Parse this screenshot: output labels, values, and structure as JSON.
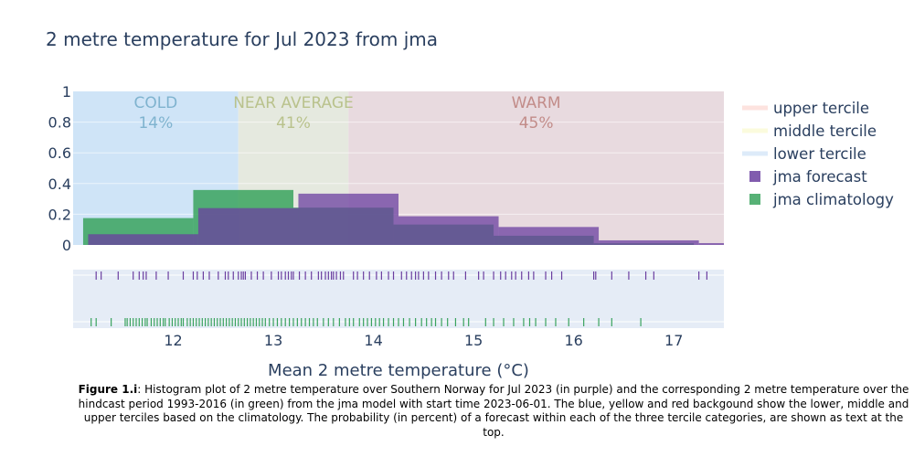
{
  "chart_data": {
    "type": "bar",
    "title": "2 metre temperature for Jul 2023 from jma",
    "xlabel": "Mean 2 metre temperature (°C)",
    "ylabel": "",
    "xlim": [
      11.0,
      17.5
    ],
    "ylim": [
      0,
      1
    ],
    "x_ticks": [
      12,
      13,
      14,
      15,
      16,
      17
    ],
    "y_ticks": [
      {
        "v": 0,
        "label": "0"
      },
      {
        "v": 0.2,
        "label": "0.2"
      },
      {
        "v": 0.4,
        "label": "0.4"
      },
      {
        "v": 0.6,
        "label": "0.6"
      },
      {
        "v": 0.8,
        "label": "0.8"
      },
      {
        "v": 1,
        "label": "1"
      }
    ],
    "grid": true,
    "legend_position": "right",
    "terciles": [
      {
        "name": "lower tercile",
        "label": "COLD",
        "probability": "14%",
        "from": 11.0,
        "to": 12.65,
        "fill": "#cfe4f7",
        "text_color": "#7fb3cf",
        "legend_color": "#ddebf9"
      },
      {
        "name": "middle tercile",
        "label": "NEAR AVERAGE",
        "probability": "41%",
        "from": 12.65,
        "to": 13.75,
        "fill": "#e5e9df",
        "text_color": "#b9c28c",
        "legend_color": "#fbfbdd"
      },
      {
        "name": "upper tercile",
        "label": "WARM",
        "probability": "45%",
        "from": 13.75,
        "to": 17.5,
        "fill": "#e8dadf",
        "text_color": "#c28c89",
        "legend_color": "#fde3df"
      }
    ],
    "series": [
      {
        "name": "jma climatology",
        "color": "#3aa35e",
        "opacity": 0.85,
        "bins": [
          {
            "x0": 11.1,
            "x1": 12.2,
            "y": 0.175
          },
          {
            "x0": 12.2,
            "x1": 13.2,
            "y": 0.358
          },
          {
            "x0": 13.2,
            "x1": 14.2,
            "y": 0.243
          },
          {
            "x0": 14.2,
            "x1": 15.2,
            "y": 0.133
          },
          {
            "x0": 15.2,
            "x1": 16.2,
            "y": 0.06
          },
          {
            "x0": 16.2,
            "x1": 17.2,
            "y": 0.011
          }
        ],
        "rug": [
          11.18,
          11.23,
          11.38,
          11.52,
          11.54,
          11.57,
          11.6,
          11.63,
          11.66,
          11.69,
          11.72,
          11.74,
          11.78,
          11.81,
          11.84,
          11.87,
          11.9,
          11.92,
          11.96,
          11.99,
          12.02,
          12.05,
          12.08,
          12.1,
          12.14,
          12.17,
          12.2,
          12.23,
          12.26,
          12.29,
          12.32,
          12.35,
          12.38,
          12.41,
          12.44,
          12.47,
          12.5,
          12.53,
          12.56,
          12.59,
          12.62,
          12.65,
          12.68,
          12.71,
          12.74,
          12.77,
          12.8,
          12.83,
          12.86,
          12.89,
          12.92,
          12.96,
          13.0,
          13.04,
          13.08,
          13.12,
          13.16,
          13.2,
          13.24,
          13.28,
          13.32,
          13.36,
          13.4,
          13.44,
          13.5,
          13.55,
          13.6,
          13.66,
          13.72,
          13.76,
          13.8,
          13.86,
          13.9,
          13.94,
          13.98,
          14.02,
          14.06,
          14.1,
          14.15,
          14.2,
          14.25,
          14.3,
          14.36,
          14.42,
          14.48,
          14.53,
          14.58,
          14.62,
          14.68,
          14.74,
          14.82,
          14.9,
          14.95,
          15.12,
          15.2,
          15.3,
          15.4,
          15.5,
          15.56,
          15.62,
          15.72,
          15.82,
          15.95,
          16.1,
          16.25,
          16.38,
          16.67
        ]
      },
      {
        "name": "jma forecast",
        "color": "#6b3fa0",
        "opacity": 0.75,
        "bins": [
          {
            "x0": 11.15,
            "x1": 12.25,
            "y": 0.07
          },
          {
            "x0": 12.25,
            "x1": 13.25,
            "y": 0.24
          },
          {
            "x0": 13.25,
            "x1": 14.25,
            "y": 0.334
          },
          {
            "x0": 14.25,
            "x1": 15.25,
            "y": 0.187
          },
          {
            "x0": 15.25,
            "x1": 16.25,
            "y": 0.117
          },
          {
            "x0": 16.25,
            "x1": 17.25,
            "y": 0.03
          },
          {
            "x0": 17.25,
            "x1": 17.5,
            "y": 0.012
          }
        ],
        "rug": [
          11.23,
          11.28,
          11.45,
          11.6,
          11.66,
          11.7,
          11.73,
          11.83,
          11.95,
          12.1,
          12.2,
          12.24,
          12.3,
          12.36,
          12.45,
          12.52,
          12.55,
          12.6,
          12.65,
          12.68,
          12.7,
          12.72,
          12.78,
          12.84,
          12.9,
          12.98,
          13.05,
          13.08,
          13.12,
          13.15,
          13.18,
          13.2,
          13.26,
          13.32,
          13.38,
          13.45,
          13.48,
          13.52,
          13.55,
          13.58,
          13.6,
          13.63,
          13.67,
          13.7,
          13.8,
          13.84,
          13.9,
          13.96,
          14.03,
          14.08,
          14.15,
          14.2,
          14.28,
          14.33,
          14.38,
          14.42,
          14.45,
          14.5,
          14.55,
          14.62,
          14.68,
          14.75,
          14.8,
          14.92,
          15.05,
          15.1,
          15.2,
          15.27,
          15.32,
          15.38,
          15.42,
          15.48,
          15.55,
          15.6,
          15.72,
          15.78,
          15.88,
          16.2,
          16.22,
          16.38,
          16.55,
          16.72,
          16.8,
          17.25,
          17.33
        ]
      }
    ],
    "legend": [
      {
        "label": "upper tercile",
        "kind": "line",
        "tercile": 2
      },
      {
        "label": "middle tercile",
        "kind": "line",
        "tercile": 1
      },
      {
        "label": "lower tercile",
        "kind": "line",
        "tercile": 0
      },
      {
        "label": "jma forecast",
        "kind": "square",
        "series": 1
      },
      {
        "label": "jma climatology",
        "kind": "square",
        "series": 0
      }
    ]
  },
  "caption": {
    "figure_label": "Figure 1.i",
    "text": ": Histogram plot of 2 metre temperature over Southern Norway for Jul 2023 (in purple) and the corresponding 2 metre temperature over the hindcast period 1993-2016 (in green) from the jma model with start time 2023-06-01. The blue, yellow and red backgound show the lower, middle and upper terciles based on the climatology. The probability (in percent) of a forecast within each of the three tercile categories, are shown as text at the top."
  }
}
